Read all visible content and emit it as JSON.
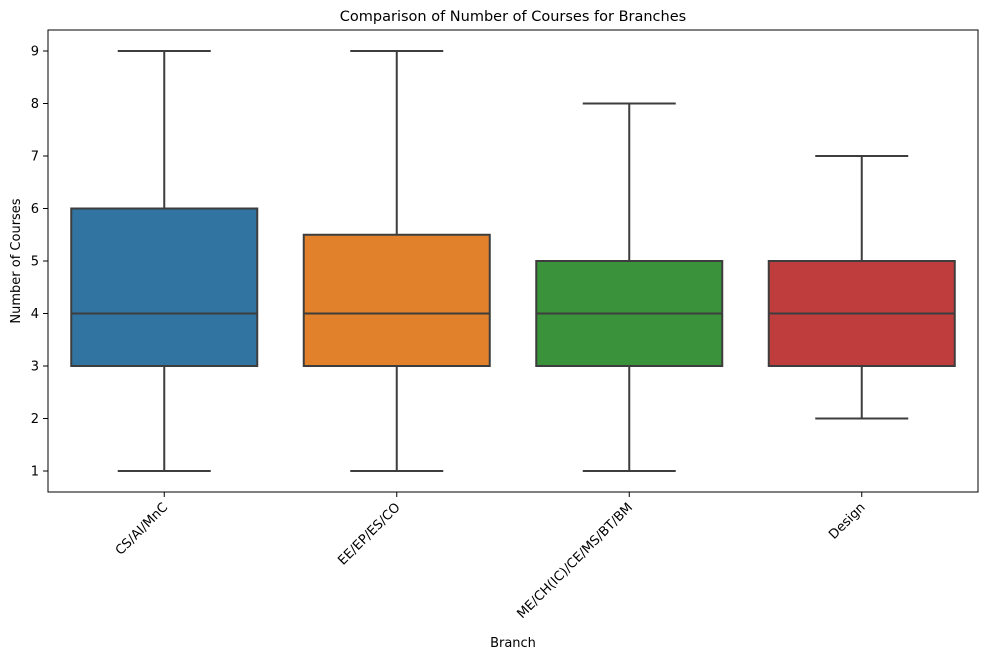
{
  "chart_data": {
    "type": "box",
    "title": "Comparison of Number of Courses for Branches",
    "xlabel": "Branch",
    "ylabel": "Number of Courses",
    "ylim": [
      0.6,
      9.4
    ],
    "yticks": [
      1,
      2,
      3,
      4,
      5,
      6,
      7,
      8,
      9
    ],
    "grid": false,
    "categories": [
      "CS/AI/MnC",
      "EE/EP/ES/CO",
      "ME/CH(IC)/CE/MS/BT/BM",
      "Design"
    ],
    "series": [
      {
        "category": "CS/AI/MnC",
        "whisker_low": 1,
        "q1": 3,
        "median": 4,
        "q3": 6,
        "whisker_high": 9,
        "color": "#3274a1"
      },
      {
        "category": "EE/EP/ES/CO",
        "whisker_low": 1,
        "q1": 3,
        "median": 4,
        "q3": 5.5,
        "whisker_high": 9,
        "color": "#e1812c"
      },
      {
        "category": "ME/CH(IC)/CE/MS/BT/BM",
        "whisker_low": 1,
        "q1": 3,
        "median": 4,
        "q3": 5,
        "whisker_high": 8,
        "color": "#3a923a"
      },
      {
        "category": "Design",
        "whisker_low": 2,
        "q1": 3,
        "median": 4,
        "q3": 5,
        "whisker_high": 7,
        "color": "#c03d3e"
      }
    ],
    "x_tick_rotation": 45
  }
}
